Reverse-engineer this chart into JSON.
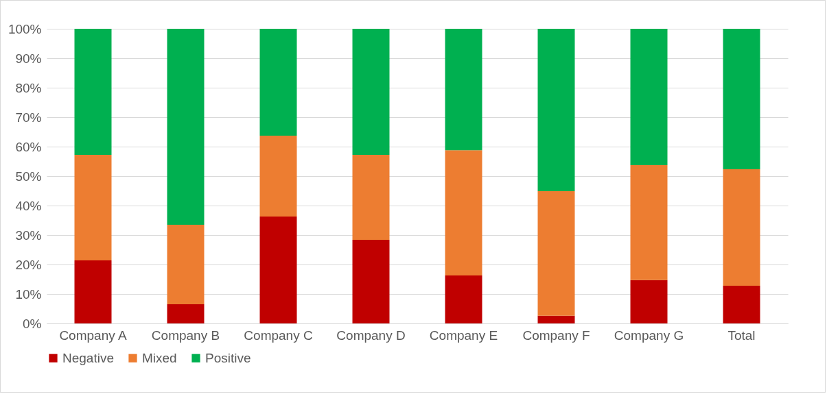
{
  "chart_data": {
    "type": "bar",
    "stacked": true,
    "categories": [
      "Company A",
      "Company B",
      "Company C",
      "Company D",
      "Company E",
      "Company F",
      "Company G",
      "Total"
    ],
    "series": [
      {
        "name": "Negative",
        "color": "#c00000",
        "values": [
          21.4,
          6.5,
          36.3,
          28.4,
          16.3,
          2.6,
          14.7,
          12.8
        ]
      },
      {
        "name": "Mixed",
        "color": "#ed7d31",
        "values": [
          35.8,
          27,
          27.4,
          28.8,
          42.5,
          42.3,
          39,
          39.5
        ]
      },
      {
        "name": "Positive",
        "color": "#00b050",
        "values": [
          42.8,
          66.5,
          36.3,
          42.8,
          41.2,
          55.1,
          46.3,
          47.7
        ]
      }
    ],
    "ylim": [
      0,
      100
    ],
    "yticks": [
      {
        "value": 0,
        "label": "0%"
      },
      {
        "value": 10,
        "label": "10%"
      },
      {
        "value": 20,
        "label": "20%"
      },
      {
        "value": 30,
        "label": "30%"
      },
      {
        "value": 40,
        "label": "40%"
      },
      {
        "value": 50,
        "label": "50%"
      },
      {
        "value": 60,
        "label": "60%"
      },
      {
        "value": 70,
        "label": "70%"
      },
      {
        "value": 80,
        "label": "80%"
      },
      {
        "value": 90,
        "label": "90%"
      },
      {
        "value": 100,
        "label": "100%"
      }
    ],
    "grid": "y",
    "legend": "bottom"
  }
}
